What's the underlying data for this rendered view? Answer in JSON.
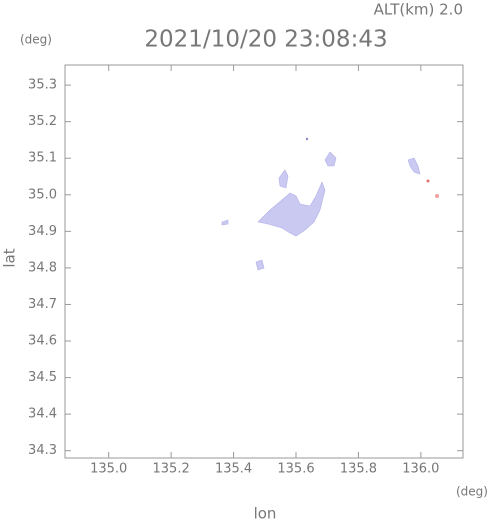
{
  "chart_data": {
    "type": "map",
    "title": "2021/10/20 23:08:43",
    "subtitle": "ALT(km) 2.0",
    "y_unit": "(deg)",
    "x_unit": "(deg)",
    "xlabel": "lon",
    "ylabel": "lat",
    "xlim": [
      134.86,
      136.135
    ],
    "ylim": [
      34.28,
      35.355
    ],
    "xticks": [
      {
        "value": 135,
        "label": "135.0"
      },
      135.2,
      135.4,
      135.6,
      135.8,
      {
        "value": 136,
        "label": "136.0"
      }
    ],
    "yticks": [
      34.3,
      34.4,
      34.5,
      34.6,
      34.7,
      34.8,
      34.9,
      {
        "value": 35,
        "label": "35.0"
      },
      35.1,
      35.2,
      35.3
    ]
  }
}
